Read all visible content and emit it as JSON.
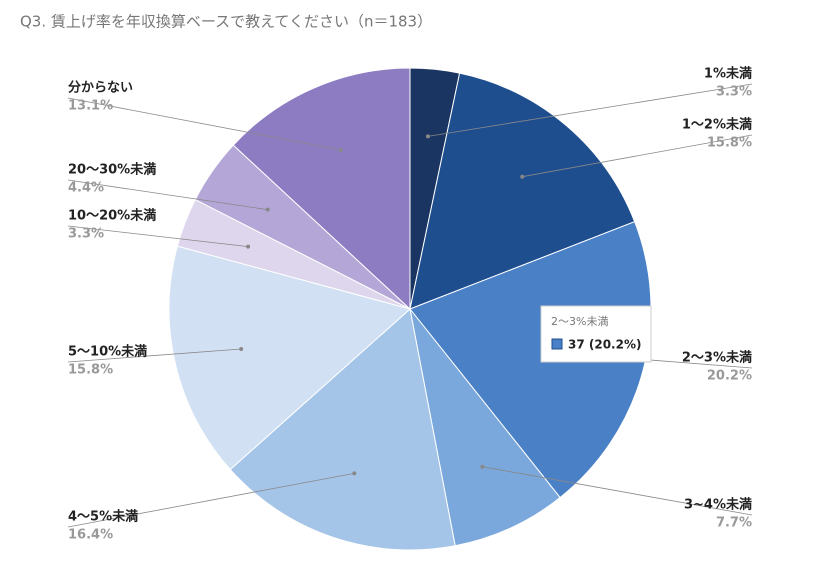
{
  "chart_data": {
    "type": "pie",
    "title": "Q3. 賃上げ率を年収換算ベースで教えてください（n＝183）",
    "categories": [
      "1%未満",
      "1〜2%未満",
      "2〜3%未満",
      "3~4%未満",
      "4〜5%未満",
      "5〜10%未満",
      "10〜20%未満",
      "20〜30%未満",
      "分からない"
    ],
    "values": [
      3.3,
      15.8,
      20.2,
      7.7,
      16.4,
      15.8,
      3.3,
      4.4,
      13.1
    ],
    "value_labels": [
      "3.3%",
      "15.8%",
      "20.2%",
      "7.7%",
      "16.4%",
      "15.8%",
      "3.3%",
      "4.4%",
      "13.1%"
    ],
    "colors": [
      "#1b3563",
      "#1f4e8f",
      "#4a80c6",
      "#7ba8dc",
      "#a4c4e8",
      "#d1e1f3",
      "#ded6ed",
      "#b4a7d7",
      "#8e7cc3"
    ],
    "tooltip": {
      "category_index": 2,
      "text": "37 (20.2%)"
    }
  }
}
